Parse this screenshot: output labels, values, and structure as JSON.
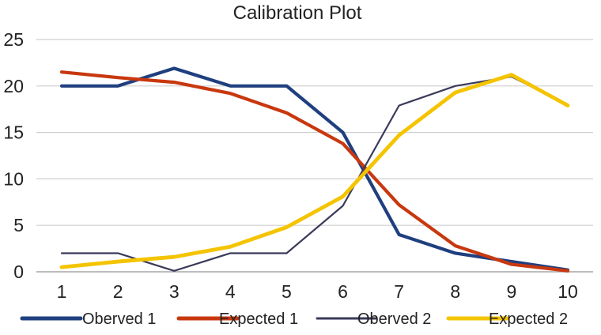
{
  "chart_data": {
    "type": "line",
    "title": "Calibration Plot",
    "xlabel": "",
    "ylabel": "",
    "x": [
      1,
      2,
      3,
      4,
      5,
      6,
      7,
      8,
      9,
      10
    ],
    "ylim": [
      0,
      25
    ],
    "y_ticks": [
      0,
      5,
      10,
      15,
      20,
      25
    ],
    "grid": true,
    "legend_position": "bottom",
    "series": [
      {
        "name": "Oberved 1",
        "color": "#1f3f7f",
        "values": [
          20,
          20,
          21.9,
          20,
          20,
          15,
          4,
          2,
          1.1,
          0.2
        ]
      },
      {
        "name": "Expected 1",
        "color": "#c8380f",
        "values": [
          21.5,
          20.9,
          20.4,
          19.2,
          17.1,
          13.8,
          7.2,
          2.8,
          0.8,
          0.1
        ]
      },
      {
        "name": "Oberved 2",
        "color": "#3a3a5a",
        "values": [
          2,
          2,
          0.1,
          2,
          2,
          7.1,
          17.9,
          20,
          21,
          18
        ]
      },
      {
        "name": "Expected 2",
        "color": "#f4c400",
        "values": [
          0.5,
          1.1,
          1.6,
          2.7,
          4.8,
          8.1,
          14.7,
          19.3,
          21.2,
          17.9
        ]
      }
    ]
  }
}
